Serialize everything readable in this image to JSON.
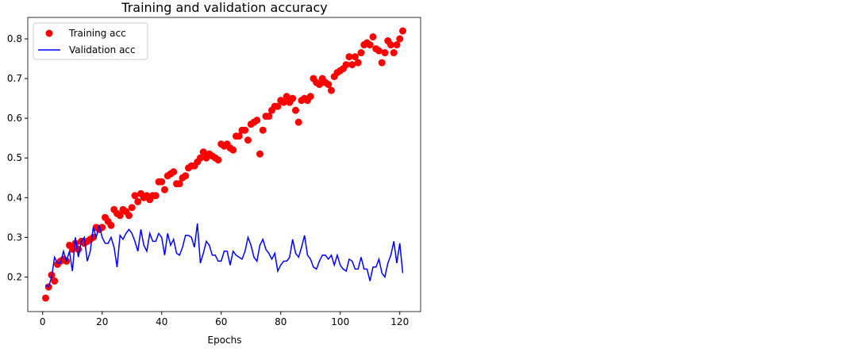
{
  "chart_data": {
    "type": "line",
    "title": "Training and validation accuracy",
    "xlabel": "Epochs",
    "x": [
      1,
      2,
      3,
      4,
      5,
      6,
      7,
      8,
      9,
      10,
      11,
      12,
      13,
      14,
      15,
      16,
      17,
      18,
      19,
      20,
      21,
      22,
      23,
      24,
      25,
      26,
      27,
      28,
      29,
      30,
      31,
      32,
      33,
      34,
      35,
      36,
      37,
      38,
      39,
      40,
      41,
      42,
      43,
      44,
      45,
      46,
      47,
      48,
      49,
      50,
      51,
      52,
      53,
      54,
      55,
      56,
      57,
      58,
      59,
      60,
      61,
      62,
      63,
      64,
      65,
      66,
      67,
      68,
      69,
      70,
      71,
      72,
      73,
      74,
      75,
      76,
      77,
      78,
      79,
      80,
      81,
      82,
      83,
      84,
      85,
      86,
      87,
      88,
      89,
      90,
      91,
      92,
      93,
      94,
      95,
      96,
      97,
      98,
      99,
      100,
      101,
      102,
      103,
      104,
      105,
      106,
      107,
      108,
      109,
      110,
      111,
      112,
      113,
      114,
      115,
      116,
      117,
      118,
      119,
      120,
      121
    ],
    "series": [
      {
        "name": "Training acc",
        "color": "#ff0000",
        "marker": "o",
        "values": [
          0.147,
          0.175,
          0.205,
          0.19,
          0.232,
          0.24,
          0.245,
          0.24,
          0.28,
          0.27,
          0.285,
          0.27,
          0.29,
          0.285,
          0.29,
          0.295,
          0.3,
          0.325,
          0.32,
          0.325,
          0.35,
          0.34,
          0.33,
          0.37,
          0.36,
          0.355,
          0.37,
          0.365,
          0.355,
          0.375,
          0.405,
          0.39,
          0.41,
          0.4,
          0.405,
          0.395,
          0.405,
          0.405,
          0.44,
          0.44,
          0.42,
          0.455,
          0.46,
          0.465,
          0.435,
          0.435,
          0.45,
          0.455,
          0.475,
          0.48,
          0.48,
          0.49,
          0.5,
          0.515,
          0.5,
          0.51,
          0.505,
          0.5,
          0.495,
          0.535,
          0.53,
          0.535,
          0.525,
          0.52,
          0.555,
          0.555,
          0.57,
          0.57,
          0.545,
          0.585,
          0.59,
          0.595,
          0.51,
          0.57,
          0.605,
          0.605,
          0.62,
          0.63,
          0.63,
          0.645,
          0.64,
          0.655,
          0.64,
          0.65,
          0.62,
          0.59,
          0.645,
          0.65,
          0.645,
          0.655,
          0.7,
          0.69,
          0.685,
          0.7,
          0.69,
          0.685,
          0.67,
          0.705,
          0.715,
          0.72,
          0.725,
          0.735,
          0.755,
          0.735,
          0.755,
          0.74,
          0.765,
          0.785,
          0.79,
          0.785,
          0.805,
          0.775,
          0.77,
          0.74,
          0.765,
          0.795,
          0.785,
          0.765,
          0.785,
          0.8,
          0.82
        ]
      },
      {
        "name": "Validation acc",
        "color": "#0000ff",
        "linestyle": "-",
        "values": [
          0.18,
          0.175,
          0.2,
          0.25,
          0.235,
          0.235,
          0.265,
          0.24,
          0.265,
          0.215,
          0.3,
          0.25,
          0.29,
          0.3,
          0.24,
          0.265,
          0.325,
          0.3,
          0.33,
          0.3,
          0.285,
          0.285,
          0.3,
          0.275,
          0.225,
          0.305,
          0.295,
          0.31,
          0.32,
          0.31,
          0.29,
          0.265,
          0.32,
          0.28,
          0.265,
          0.31,
          0.29,
          0.29,
          0.31,
          0.3,
          0.255,
          0.31,
          0.28,
          0.295,
          0.26,
          0.255,
          0.275,
          0.305,
          0.305,
          0.3,
          0.275,
          0.335,
          0.235,
          0.26,
          0.29,
          0.28,
          0.255,
          0.255,
          0.24,
          0.24,
          0.265,
          0.265,
          0.23,
          0.265,
          0.255,
          0.25,
          0.245,
          0.265,
          0.3,
          0.28,
          0.25,
          0.24,
          0.28,
          0.295,
          0.27,
          0.26,
          0.245,
          0.26,
          0.215,
          0.23,
          0.24,
          0.24,
          0.25,
          0.295,
          0.26,
          0.25,
          0.275,
          0.305,
          0.255,
          0.245,
          0.225,
          0.22,
          0.24,
          0.255,
          0.255,
          0.245,
          0.255,
          0.23,
          0.255,
          0.23,
          0.22,
          0.215,
          0.245,
          0.24,
          0.22,
          0.22,
          0.25,
          0.22,
          0.22,
          0.19,
          0.225,
          0.225,
          0.245,
          0.21,
          0.2,
          0.235,
          0.255,
          0.29,
          0.235,
          0.285,
          0.21
        ]
      }
    ],
    "xlim": [
      -5,
      127
    ],
    "xticks": [
      0,
      20,
      40,
      60,
      80,
      100,
      120
    ],
    "ylim": [
      0.113,
      0.854
    ],
    "yticks": [
      0.2,
      0.3,
      0.4,
      0.5,
      0.6,
      0.7,
      0.8
    ],
    "legend": "upper left"
  }
}
